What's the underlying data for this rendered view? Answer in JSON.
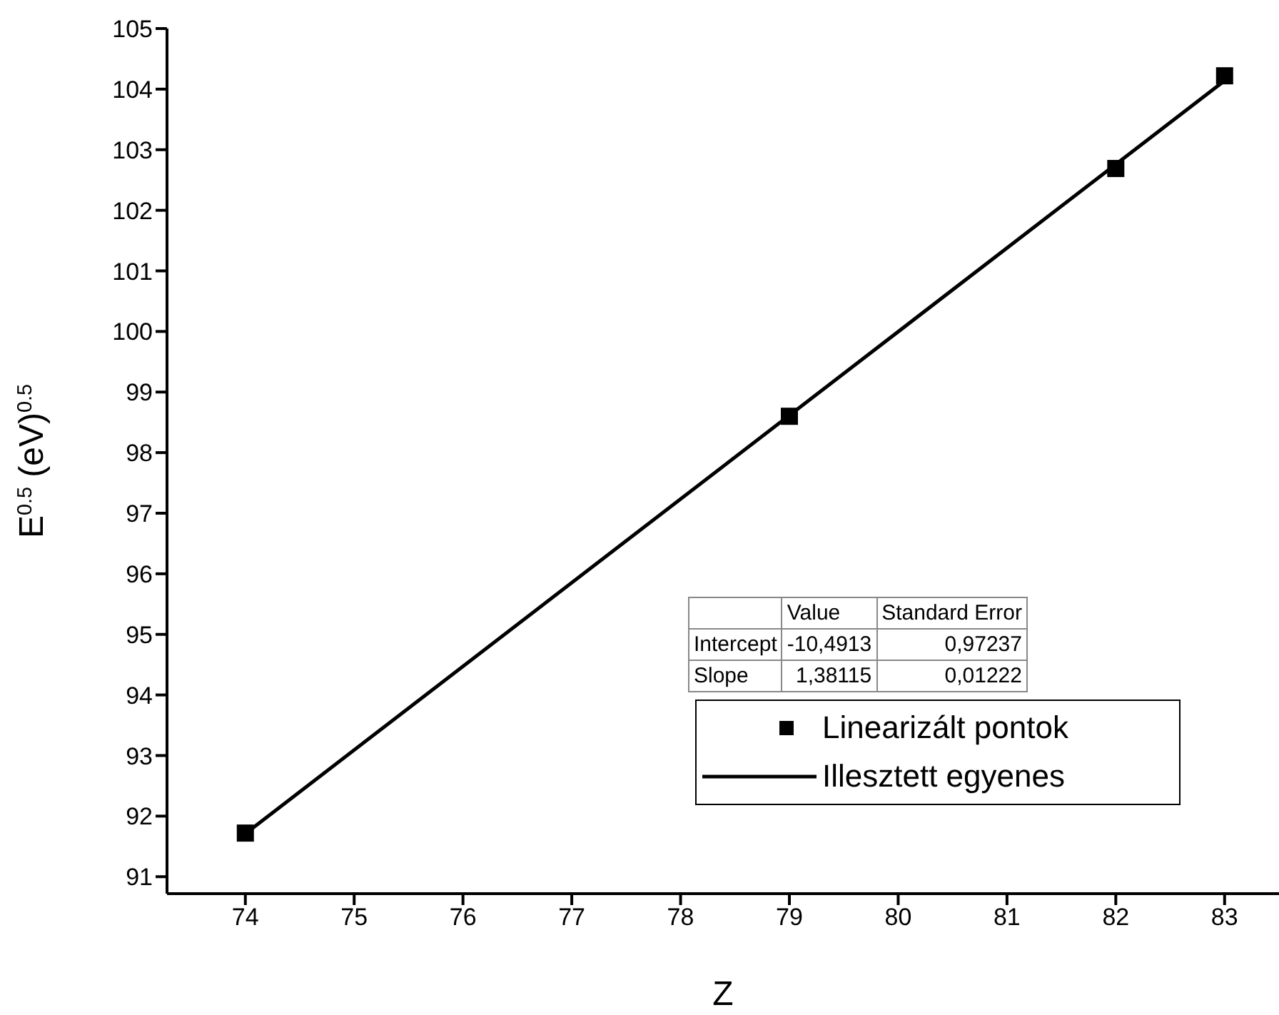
{
  "chart_data": {
    "type": "scatter",
    "xlabel": "Z",
    "ylabel": "E$^{0.5}$ (eV)$^{0.5}$",
    "xlim": [
      73.28,
      83.5
    ],
    "xticks": [
      74,
      75,
      76,
      77,
      78,
      79,
      80,
      81,
      82,
      83
    ],
    "ylim": [
      90.72,
      105
    ],
    "yticks": [
      91,
      92,
      93,
      94,
      95,
      96,
      97,
      98,
      99,
      100,
      101,
      102,
      103,
      104,
      105
    ],
    "series": [
      {
        "name": "Linearizált pontok",
        "marker": "square",
        "color": "#000000",
        "x": [
          74,
          79,
          82,
          83
        ],
        "values": [
          91.72,
          98.6,
          102.69,
          104.22
        ]
      },
      {
        "name": "Illesztett egyenes",
        "type": "line",
        "marker": "none",
        "line_style": "solid",
        "color": "#000000",
        "x": [
          74,
          83
        ],
        "values": [
          91.71,
          104.14
        ]
      }
    ],
    "annotations": [
      "Value",
      "Standard Error",
      "Intercept",
      "-10,4913",
      "0,97237",
      "Slope",
      "1,38115",
      "0,01222"
    ],
    "legend": "bottom right"
  }
}
